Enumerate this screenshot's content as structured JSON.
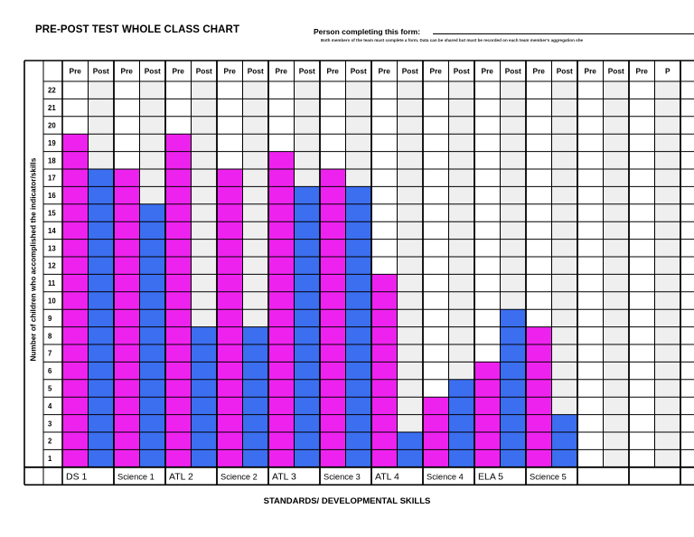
{
  "header": {
    "title": "PRE-POST TEST WHOLE CLASS CHART",
    "person_label": "Person completing this form:",
    "note": "Both members of the team must complete a form.  Data can be shared but must be recorded on each team member's aggregation she"
  },
  "colors": {
    "pre": "#ee22ee",
    "post": "#3c6ef0",
    "shade": "#efefef",
    "grid": "#000000"
  },
  "chart_data": {
    "type": "bar",
    "title": "PRE-POST TEST WHOLE CLASS CHART",
    "xlabel": "STANDARDS/ DEVELOPMENTAL SKILLS",
    "ylabel": "Number of children who accomplished the indicator/skills",
    "ylim": [
      0,
      22
    ],
    "yticks": [
      "1",
      "2",
      "3",
      "4",
      "5",
      "6",
      "7",
      "8",
      "9",
      "10",
      "11",
      "12",
      "13",
      "14",
      "15",
      "16",
      "17",
      "18",
      "19",
      "20",
      "21",
      "22"
    ],
    "column_headers": [
      "Pre",
      "Post",
      "Pre",
      "Post",
      "Pre",
      "Post",
      "Pre",
      "Post",
      "Pre",
      "Post",
      "Pre",
      "Post",
      "Pre",
      "Post",
      "Pre",
      "Post",
      "Pre",
      "Post",
      "Pre",
      "Post",
      "Pre",
      "Post",
      "Pre",
      "P"
    ],
    "categories": [
      "DS 1",
      "Science 1",
      "ATL 2",
      "Science 2",
      "ATL 3",
      "Science 3",
      "ATL 4",
      "Science 4",
      "ELA 5",
      "Science 5",
      "",
      ""
    ],
    "series": [
      {
        "name": "Pre",
        "values": [
          19,
          17,
          19,
          17,
          18,
          17,
          11,
          4,
          6,
          8,
          null,
          null
        ]
      },
      {
        "name": "Post",
        "values": [
          17,
          15,
          8,
          8,
          16,
          16,
          2,
          5,
          9,
          3,
          null,
          null
        ]
      }
    ],
    "grid": true
  }
}
